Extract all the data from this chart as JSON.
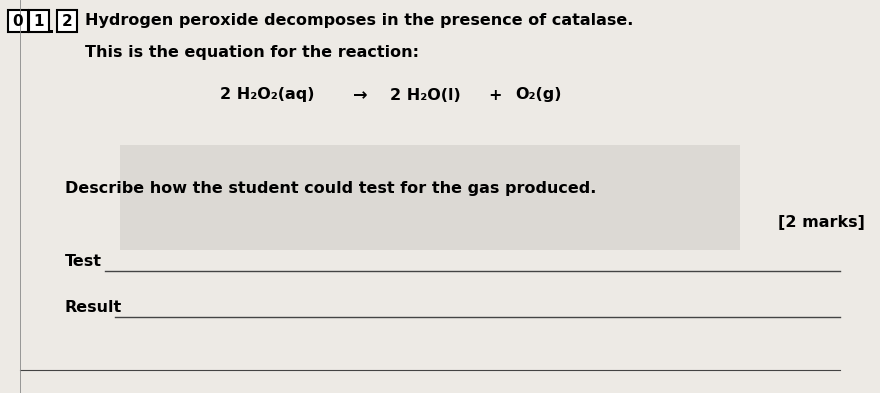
{
  "bg_color": "#d8d5d0",
  "paper_color": "#edeae5",
  "title_text": "Hydrogen peroxide decomposes in the presence of catalase.",
  "subtitle_text": "This is the equation for the reaction:",
  "equation_left": "2 H₂O₂(aq)",
  "equation_arrow": "→",
  "equation_middle": "2 H₂O(l)",
  "equation_plus": "+",
  "equation_right": "O₂(g)",
  "question_text": "Describe how the student could test for the gas produced.",
  "marks_text": "[2 marks]",
  "label_test": "Test",
  "label_result": "Result",
  "font_size_title": 11.5,
  "font_size_eq": 11.5,
  "font_size_question": 11.5,
  "font_size_marks": 11.5,
  "font_size_labels": 11.5,
  "box_color": "#c8c5c0",
  "line_color": "#555555",
  "text_color": "#1a1a1a"
}
